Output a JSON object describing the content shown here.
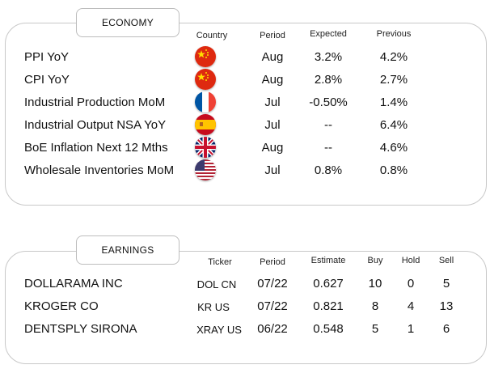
{
  "economy": {
    "title": "ECONOMY",
    "headers": {
      "country": "Country",
      "period": "Period",
      "expected": "Expected",
      "previous": "Previous"
    },
    "rows": [
      {
        "name": "PPI YoY",
        "country_flag": "china-flag-icon",
        "period": "Aug",
        "expected": "3.2%",
        "previous": "4.2%"
      },
      {
        "name": "CPI YoY",
        "country_flag": "china-flag-icon",
        "period": "Aug",
        "expected": "2.8%",
        "previous": "2.7%"
      },
      {
        "name": "Industrial Production MoM",
        "country_flag": "france-flag-icon",
        "period": "Jul",
        "expected": "-0.50%",
        "previous": "1.4%"
      },
      {
        "name": "Industrial Output NSA YoY",
        "country_flag": "spain-flag-icon",
        "period": "Jul",
        "expected": "--",
        "previous": "6.4%"
      },
      {
        "name": "BoE Inflation Next 12 Mths",
        "country_flag": "uk-flag-icon",
        "period": "Aug",
        "expected": "--",
        "previous": "4.6%"
      },
      {
        "name": "Wholesale Inventories MoM",
        "country_flag": "usa-flag-icon",
        "period": "Jul",
        "expected": "0.8%",
        "previous": "0.8%"
      }
    ]
  },
  "earnings": {
    "title": "EARNINGS",
    "headers": {
      "ticker": "Ticker",
      "period": "Period",
      "estimate": "Estimate",
      "buy": "Buy",
      "hold": "Hold",
      "sell": "Sell"
    },
    "rows": [
      {
        "name": "DOLLARAMA INC",
        "ticker": "DOL CN",
        "period": "07/22",
        "estimate": "0.627",
        "buy": "10",
        "hold": "0",
        "sell": "5"
      },
      {
        "name": "KROGER CO",
        "ticker": "KR US",
        "period": "07/22",
        "estimate": "0.821",
        "buy": "8",
        "hold": "4",
        "sell": "13"
      },
      {
        "name": "DENTSPLY SIRONA",
        "ticker": "XRAY US",
        "period": "06/22",
        "estimate": "0.548",
        "buy": "5",
        "hold": "1",
        "sell": "6"
      }
    ]
  }
}
